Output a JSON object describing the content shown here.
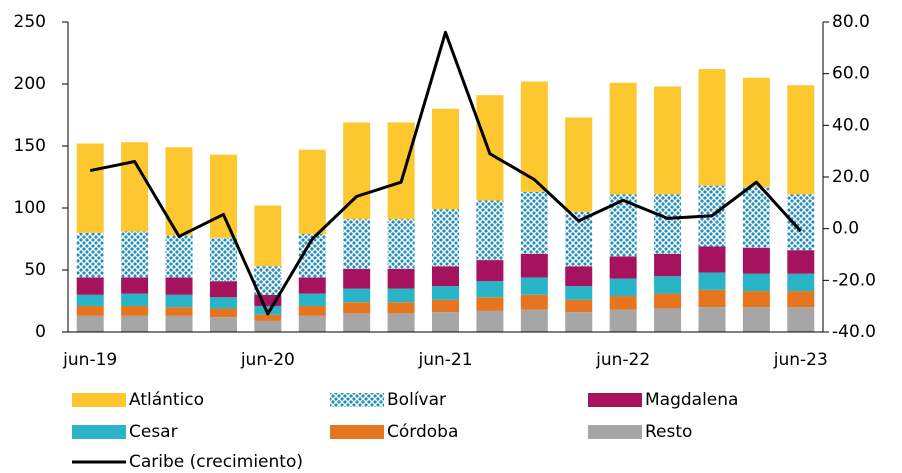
{
  "chart_data": {
    "type": "bar",
    "stacked": true,
    "categories": [
      "jun-19",
      null,
      null,
      null,
      "jun-20",
      null,
      null,
      null,
      "jun-21",
      null,
      null,
      null,
      "jun-22",
      null,
      null,
      null,
      "jun-23"
    ],
    "ylim": [
      0,
      250
    ],
    "yticks": [
      0,
      50,
      100,
      150,
      200,
      250
    ],
    "y2lim": [
      -40,
      80
    ],
    "y2ticks": [
      {
        "value": -40,
        "label": "-40.0"
      },
      {
        "value": -20,
        "label": "-20.0"
      },
      {
        "value": 0,
        "label": "0.0"
      },
      {
        "value": 20,
        "label": "20.0"
      },
      {
        "value": 40,
        "label": "40.0"
      },
      {
        "value": 60,
        "label": "60.0"
      },
      {
        "value": 80,
        "label": "80.0"
      }
    ],
    "series": [
      {
        "name": "Resto",
        "color": "#a6a6a6",
        "values": [
          13,
          13,
          13,
          12,
          9,
          13,
          15,
          15,
          16,
          17,
          18,
          16,
          18,
          19,
          20,
          20,
          20
        ]
      },
      {
        "name": "Córdoba",
        "color": "#e5761f",
        "values": [
          8,
          8,
          7,
          7,
          5,
          8,
          9,
          9,
          10,
          11,
          12,
          10,
          11,
          12,
          14,
          13,
          13
        ]
      },
      {
        "name": "Cesar",
        "color": "#2ab4c8",
        "values": [
          9,
          10,
          10,
          9,
          7,
          10,
          11,
          11,
          11,
          13,
          14,
          11,
          14,
          14,
          14,
          14,
          14
        ]
      },
      {
        "name": "Magdalena",
        "color": "#a5135e",
        "values": [
          14,
          13,
          14,
          13,
          9,
          13,
          16,
          16,
          16,
          17,
          19,
          16,
          18,
          18,
          21,
          21,
          19
        ]
      },
      {
        "name": "Bolívar",
        "color": "#1f8fbf",
        "pattern": "crosshatch",
        "values": [
          36,
          37,
          34,
          35,
          23,
          35,
          40,
          40,
          46,
          48,
          50,
          44,
          50,
          48,
          49,
          49,
          45
        ]
      },
      {
        "name": "Atlántico",
        "color": "#fcc72f",
        "values": [
          72,
          72,
          71,
          67,
          49,
          68,
          78,
          78,
          81,
          85,
          89,
          76,
          90,
          87,
          94,
          88,
          88
        ]
      },
      {
        "name": "Caribe (crecimiento)",
        "type": "line",
        "axis": "y2",
        "color": "#000000",
        "values": [
          22.5,
          26,
          -3,
          5.5,
          -33,
          -4,
          12.5,
          18,
          76,
          29,
          19,
          3,
          11,
          4,
          5,
          18,
          -1
        ]
      }
    ]
  }
}
